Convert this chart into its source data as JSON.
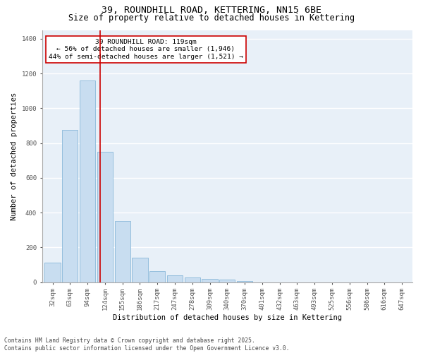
{
  "title_line1": "39, ROUNDHILL ROAD, KETTERING, NN15 6BE",
  "title_line2": "Size of property relative to detached houses in Kettering",
  "xlabel": "Distribution of detached houses by size in Kettering",
  "ylabel": "Number of detached properties",
  "categories": [
    "32sqm",
    "63sqm",
    "94sqm",
    "124sqm",
    "155sqm",
    "186sqm",
    "217sqm",
    "247sqm",
    "278sqm",
    "309sqm",
    "340sqm",
    "370sqm",
    "401sqm",
    "432sqm",
    "463sqm",
    "493sqm",
    "525sqm",
    "556sqm",
    "586sqm",
    "616sqm",
    "647sqm"
  ],
  "values": [
    110,
    875,
    1160,
    750,
    350,
    140,
    65,
    38,
    28,
    20,
    15,
    8,
    0,
    0,
    0,
    0,
    0,
    0,
    0,
    0,
    0
  ],
  "bar_color": "#c8ddf0",
  "bar_edge_color": "#7aafd4",
  "property_line_x": 2.72,
  "property_line_color": "#cc0000",
  "annotation_text": "39 ROUNDHILL ROAD: 119sqm\n← 56% of detached houses are smaller (1,946)\n44% of semi-detached houses are larger (1,521) →",
  "annotation_box_color": "#cc0000",
  "ylim": [
    0,
    1450
  ],
  "yticks": [
    0,
    200,
    400,
    600,
    800,
    1000,
    1200,
    1400
  ],
  "background_color": "#e8f0f8",
  "grid_color": "#ffffff",
  "footnote": "Contains HM Land Registry data © Crown copyright and database right 2025.\nContains public sector information licensed under the Open Government Licence v3.0.",
  "title_fontsize": 9.5,
  "subtitle_fontsize": 8.5,
  "label_fontsize": 7.5,
  "tick_fontsize": 6.5,
  "annot_fontsize": 6.8,
  "footnote_fontsize": 5.8
}
